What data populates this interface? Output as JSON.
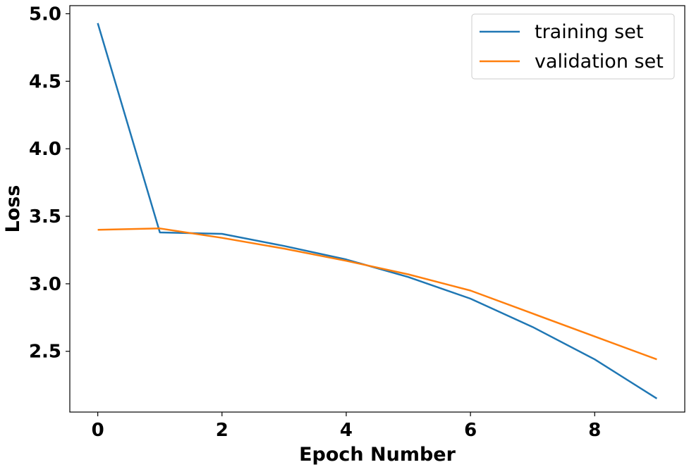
{
  "chart_data": {
    "type": "line",
    "title": "",
    "xlabel": "Epoch Number",
    "ylabel": "Loss",
    "x": [
      0,
      1,
      2,
      3,
      4,
      5,
      6,
      7,
      8,
      9
    ],
    "xlim": [
      -0.45,
      9.45
    ],
    "ylim": [
      2.05,
      5.06
    ],
    "xticks": [
      0,
      2,
      4,
      6,
      8
    ],
    "yticks": [
      2.5,
      3.0,
      3.5,
      4.0,
      4.5,
      5.0
    ],
    "xtick_labels": [
      "0",
      "2",
      "4",
      "6",
      "8"
    ],
    "ytick_labels": [
      "2.5",
      "3.0",
      "3.5",
      "4.0",
      "4.5",
      "5.0"
    ],
    "grid": false,
    "legend_position": "top-right",
    "series": [
      {
        "name": "training set",
        "color": "#1f77b4",
        "values": [
          4.93,
          3.38,
          3.37,
          3.28,
          3.18,
          3.05,
          2.89,
          2.68,
          2.44,
          2.15
        ]
      },
      {
        "name": "validation set",
        "color": "#ff7f0e",
        "values": [
          3.4,
          3.41,
          3.34,
          3.26,
          3.17,
          3.07,
          2.95,
          2.78,
          2.61,
          2.44
        ]
      }
    ]
  }
}
